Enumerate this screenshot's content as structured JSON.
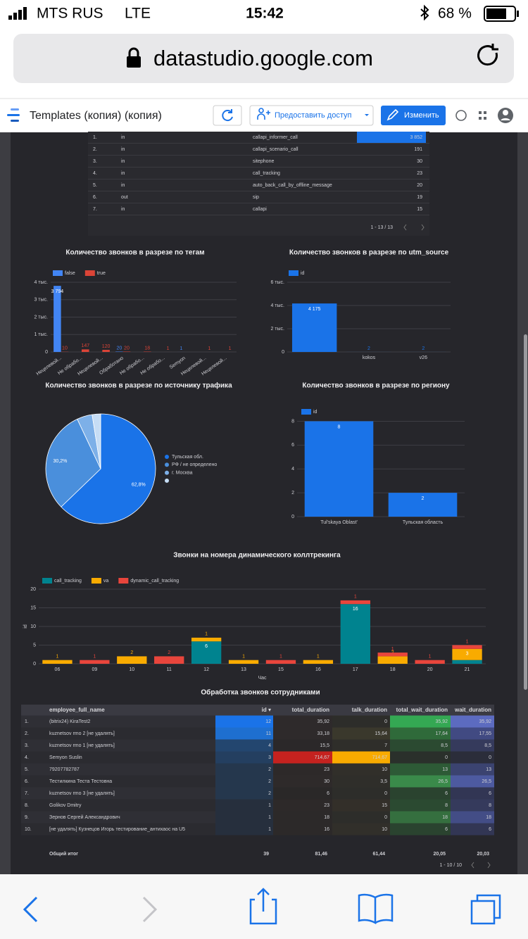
{
  "status_bar": {
    "carrier": "MTS RUS",
    "network": "LTE",
    "time": "15:42",
    "battery": "68 %"
  },
  "browser": {
    "url": "datastudio.google.com"
  },
  "toolbar": {
    "title": "Templates (копия) (копия)",
    "share": "Предоставить доступ",
    "edit": "Изменить"
  },
  "top_table": {
    "rows": [
      [
        "1.",
        "in",
        "callapi_informer_call",
        "3 852"
      ],
      [
        "2.",
        "in",
        "callapi_scenario_call",
        "191"
      ],
      [
        "3.",
        "in",
        "sitephone",
        "30"
      ],
      [
        "4.",
        "in",
        "call_tracking",
        "23"
      ],
      [
        "5.",
        "in",
        "auto_back_call_by_offline_message",
        "20"
      ],
      [
        "6.",
        "out",
        "sip",
        "19"
      ],
      [
        "7.",
        "in",
        "callapi",
        "15"
      ]
    ],
    "pagination": "1 - 13 / 13"
  },
  "chart_data": [
    {
      "type": "bar",
      "title": "Количество звонков в разрезе по тегам",
      "categories": [
        "Нецелевой...",
        "Не обрабо...",
        "Нецелевой...",
        "Обработано",
        "Не обрабо...",
        "Не обрабо...",
        "Semyon",
        "Нецелевой...",
        "Нецелевой..."
      ],
      "series": [
        {
          "name": "false",
          "color": "#4285f4",
          "values": [
            3794,
            null,
            null,
            20,
            null,
            null,
            1,
            null,
            null
          ],
          "value_labels": [
            "3 794",
            null,
            null,
            null,
            null,
            null,
            null,
            null,
            null
          ]
        },
        {
          "name": "true",
          "color": "#db4437",
          "values": [
            10,
            147,
            120,
            20,
            18,
            1,
            null,
            1,
            1
          ]
        }
      ],
      "ylim": [
        0,
        4000
      ],
      "yticks": [
        0,
        {
          "value": 1000,
          "label": "1 тыс."
        },
        {
          "value": 2000,
          "label": "2 тыс."
        },
        {
          "value": 3000,
          "label": "3 тыс."
        },
        {
          "value": 4000,
          "label": "4 тыс."
        }
      ],
      "grid": true
    },
    {
      "type": "bar",
      "title": "Количество звонков в разрезе по utm_source",
      "categories": [
        null,
        "kokos",
        "v26"
      ],
      "series": [
        {
          "name": "id",
          "color": "#1a73e8",
          "values": [
            4175,
            2,
            2
          ],
          "value_labels": [
            "4 175",
            null,
            null
          ]
        }
      ],
      "ylim": [
        0,
        6000
      ],
      "yticks": [
        0,
        {
          "value": 2000,
          "label": "2 тыс."
        },
        {
          "value": 4000,
          "label": "4 тыс."
        },
        {
          "value": 6000,
          "label": "6 тыс."
        }
      ],
      "grid": true
    },
    {
      "type": "pie",
      "title": "Количество звонков в разрезе по источнику трафика",
      "labels": [
        "Тульская обл.",
        "РФ / не определено",
        "г. Москва",
        null
      ],
      "values": [
        62.8,
        30.2,
        4.5,
        2.5
      ],
      "value_labels": [
        "62,8%",
        "30,2%",
        null,
        null
      ],
      "colors": [
        "#1a73e8",
        "#4a8fdc",
        "#7db0e8",
        "#c6ddf5"
      ]
    },
    {
      "type": "bar",
      "title": "Количество звонков в разрезе по региону",
      "categories": [
        "Tul'skaya Oblast'",
        "Тульская область"
      ],
      "series": [
        {
          "name": "id",
          "color": "#1a73e8",
          "values": [
            8,
            2
          ]
        }
      ],
      "ylim": [
        0,
        8.5
      ],
      "yticks": [
        0,
        2,
        4,
        6,
        8
      ],
      "grid": true
    },
    {
      "type": "bar",
      "stacked": true,
      "title": "Звонки на номера динамического коллтрекинга",
      "x_label": "Час",
      "y_label": "id",
      "categories": [
        "06",
        "09",
        "10",
        "11",
        "12",
        "13",
        "15",
        "16",
        "17",
        "18",
        "20",
        "21"
      ],
      "series": [
        {
          "name": "call_tracking",
          "color": "#00838f",
          "values": [
            null,
            null,
            null,
            null,
            6,
            null,
            null,
            null,
            16,
            null,
            null,
            1
          ]
        },
        {
          "name": "va",
          "color": "#f9ab00",
          "values": [
            1,
            null,
            2,
            null,
            1,
            1,
            null,
            1,
            null,
            2,
            null,
            3
          ]
        },
        {
          "name": "dynamic_call_tracking",
          "color": "#e8453c",
          "values": [
            null,
            1,
            null,
            2,
            null,
            null,
            1,
            null,
            1,
            1,
            1,
            1
          ]
        }
      ],
      "ylim": [
        0,
        20
      ],
      "yticks": [
        0,
        5,
        10,
        15,
        20
      ],
      "grid": true
    }
  ],
  "bottom_table": {
    "title": "Обработка звонков сотрудниками",
    "headers": [
      "employee_full_name",
      "id ▾",
      "total_duration",
      "talk_duration",
      "total_wait_duration",
      "wait_duration"
    ],
    "rows": [
      [
        "1.",
        "(bitrix24) KiraTest2",
        "12",
        "35,92",
        "0",
        "35,92",
        "35,92"
      ],
      [
        "2.",
        "kuznetsov rmo 2 [не удалять]",
        "11",
        "33,18",
        "15,64",
        "17,64",
        "17,55"
      ],
      [
        "3.",
        "kuznetsov rmo 1 [не удалять]",
        "4",
        "15,5",
        "7",
        "8,5",
        "8,5"
      ],
      [
        "4.",
        "Semyon Suslin",
        "3",
        "714,67",
        "714,67",
        "0",
        "0"
      ],
      [
        "5.",
        "79207782787",
        "2",
        "23",
        "10",
        "13",
        "13"
      ],
      [
        "6.",
        "Тестилкина Теста Тестовна",
        "2",
        "30",
        "3,5",
        "26,5",
        "26,5"
      ],
      [
        "7.",
        "kuznetsov rmo 3 [не удалять]",
        "2",
        "6",
        "0",
        "6",
        "6"
      ],
      [
        "8.",
        "Golikov Dmitry",
        "1",
        "23",
        "15",
        "8",
        "8"
      ],
      [
        "9.",
        "Зернов Сергей Александрович",
        "1",
        "18",
        "0",
        "18",
        "18"
      ],
      [
        "10.",
        "[не удалять] Кузнецов Игорь тестирование_антихаос на U5",
        "1",
        "16",
        "10",
        "6",
        "6"
      ]
    ],
    "total": [
      "Общий итог",
      "39",
      "81,46",
      "61,44",
      "20,05",
      "20,03"
    ],
    "pagination": "1 - 10 / 10"
  }
}
